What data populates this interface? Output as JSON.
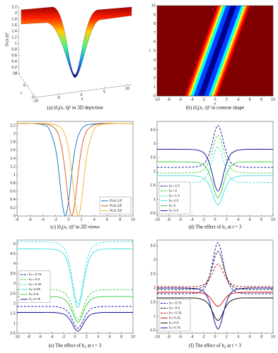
{
  "chart_data": [
    {
      "type": "surface",
      "caption": "(a) |ϑ₄(x, t)|² in 3D depiction",
      "xlabel": "x",
      "ylabel": "t",
      "zlabel": "|ϑ₄(x,t)|²",
      "xlim": [
        -10,
        10
      ],
      "xticks": [
        -10,
        -5,
        0,
        5,
        10
      ],
      "ylim": [
        0,
        10
      ],
      "yticks": [
        0,
        5,
        10
      ],
      "zlim": [
        0,
        2.25
      ],
      "zticks": [
        0,
        0.2,
        0.4,
        0.6,
        0.8,
        1,
        1.2,
        1.4,
        1.6,
        1.8,
        2,
        2.2
      ]
    },
    {
      "type": "contour",
      "caption": "(b) |ϑ₄(x, t)|² in contour shape",
      "xlabel": "x",
      "ylabel": "t",
      "xlim": [
        -10,
        10
      ],
      "xticks": [
        -10,
        -8,
        -6,
        -4,
        -2,
        0,
        2,
        4,
        6,
        8,
        10
      ],
      "ylim": [
        0,
        10
      ],
      "yticks": [
        0,
        1,
        2,
        3,
        4,
        5,
        6,
        7,
        8,
        9,
        10
      ]
    },
    {
      "type": "line",
      "caption": "(c) |ϑ₄(x, t)|² in 2D views",
      "legend": "lower right",
      "x": [
        -8,
        -6,
        -4,
        -3,
        -2,
        -1.5,
        -1,
        -0.5,
        0,
        0.5,
        1,
        1.5,
        2,
        2.5,
        3,
        4,
        5,
        6,
        8,
        10
      ],
      "xlim": [
        -8,
        10
      ],
      "xticks": [
        -8,
        -6,
        -4,
        -2,
        0,
        2,
        4,
        6,
        8,
        10
      ],
      "ylim": [
        0,
        2.3
      ],
      "yticks": [
        0,
        0.2,
        0.4,
        0.6,
        0.8,
        1,
        1.2,
        1.4,
        1.6,
        1.8,
        2,
        2.2
      ],
      "series": [
        {
          "name": "|ϑ₄(x,1)|²",
          "color": "#0072bd",
          "dashed": false,
          "values": [
            2.25,
            2.25,
            2.22,
            2.11,
            1.62,
            1.05,
            0.35,
            0,
            0.35,
            1.05,
            1.62,
            1.95,
            2.11,
            2.19,
            2.22,
            2.24,
            2.25,
            2.25,
            2.25,
            2.25
          ]
        },
        {
          "name": "|ϑ₄(x,2)|²",
          "color": "#d95319",
          "dashed": false,
          "values": [
            2.25,
            2.25,
            2.24,
            2.22,
            2.11,
            1.95,
            1.62,
            1.05,
            0.35,
            0,
            0.35,
            1.05,
            1.62,
            1.95,
            2.11,
            2.22,
            2.24,
            2.25,
            2.25,
            2.25
          ]
        },
        {
          "name": "|ϑ₄(x,3)|²",
          "color": "#edb120",
          "dashed": false,
          "values": [
            2.25,
            2.25,
            2.25,
            2.24,
            2.22,
            2.19,
            2.11,
            1.95,
            1.62,
            1.05,
            0.35,
            0,
            0.35,
            1.05,
            1.62,
            2.11,
            2.22,
            2.24,
            2.25,
            2.25
          ]
        }
      ]
    },
    {
      "type": "line",
      "caption": "(d) The effect of b₂ at t = 3",
      "legend": "lower left",
      "x": [
        -10,
        -6,
        -4,
        -3,
        -2,
        -1.5,
        -1,
        -0.5,
        0,
        0.5,
        1,
        1.5,
        2,
        2.5,
        3,
        4,
        5,
        6,
        10
      ],
      "xlim": [
        -10,
        10
      ],
      "xticks": [
        -10,
        -8,
        -6,
        -4,
        -2,
        0,
        2,
        4,
        6,
        8,
        10
      ],
      "ylim": [
        0.4,
        3.8
      ],
      "yticks": [
        0.5,
        1,
        1.5,
        2,
        2.5,
        3,
        3.5
      ],
      "series": [
        {
          "name": "b₂=-2.5",
          "color": "#000099",
          "dashed": true,
          "values": [
            2.15,
            2.15,
            2.16,
            2.18,
            2.27,
            2.4,
            2.65,
            3.02,
            3.45,
            3.65,
            3.45,
            3.02,
            2.65,
            2.4,
            2.27,
            2.18,
            2.16,
            2.15,
            2.15
          ]
        },
        {
          "name": "b₂=-2",
          "color": "#33cc33",
          "dashed": true,
          "values": [
            1.95,
            1.95,
            1.96,
            1.97,
            2.06,
            2.18,
            2.4,
            2.73,
            3.12,
            3.3,
            3.12,
            2.73,
            2.4,
            2.18,
            2.06,
            1.97,
            1.96,
            1.95,
            1.95
          ]
        },
        {
          "name": "b₂=-1.5",
          "color": "#33dede",
          "dashed": true,
          "values": [
            1.6,
            1.6,
            1.61,
            1.62,
            1.71,
            1.82,
            2.03,
            2.35,
            2.72,
            2.9,
            2.72,
            2.35,
            2.03,
            1.82,
            1.71,
            1.62,
            1.61,
            1.6,
            1.6
          ]
        },
        {
          "name": "b₂=1.5",
          "color": "#33dede",
          "dashed": false,
          "values": [
            1.85,
            1.85,
            1.85,
            1.83,
            1.76,
            1.67,
            1.5,
            1.24,
            0.94,
            0.8,
            0.94,
            1.24,
            1.5,
            1.67,
            1.76,
            1.83,
            1.85,
            1.85,
            1.85
          ]
        },
        {
          "name": "b₂=2",
          "color": "#33cc33",
          "dashed": false,
          "values": [
            2.35,
            2.35,
            2.34,
            2.33,
            2.24,
            2.13,
            1.92,
            1.6,
            1.23,
            1.05,
            1.23,
            1.6,
            1.92,
            2.13,
            2.24,
            2.33,
            2.34,
            2.35,
            2.35
          ]
        },
        {
          "name": "b₂=2.5",
          "color": "#000099",
          "dashed": false,
          "values": [
            2.8,
            2.8,
            2.79,
            2.77,
            2.68,
            2.55,
            2.31,
            1.93,
            1.5,
            1.3,
            1.5,
            1.93,
            2.31,
            2.55,
            2.68,
            2.77,
            2.79,
            2.8,
            2.8
          ]
        }
      ]
    },
    {
      "type": "line",
      "caption": "(e) The effect of b₃ at t = 3",
      "legend": "center left",
      "x": [
        -10,
        -6,
        -4,
        -3,
        -2,
        -1.5,
        -1,
        -0.5,
        0,
        0.5,
        1,
        1.5,
        2,
        2.5,
        3,
        4,
        5,
        6,
        10
      ],
      "xlim": [
        -10,
        10
      ],
      "xticks": [
        -10,
        -8,
        -6,
        -4,
        -2,
        0,
        2,
        4,
        6,
        8,
        10
      ],
      "ylim": [
        0.5,
        5.2
      ],
      "yticks": [
        0.5,
        1,
        1.5,
        2,
        2.5,
        3,
        3.5,
        4,
        4.5,
        5
      ],
      "series": [
        {
          "name": "b₃=-0.75",
          "color": "#000099",
          "dashed": true,
          "values": [
            1.85,
            1.85,
            1.85,
            1.83,
            1.76,
            1.66,
            1.49,
            1.21,
            0.9,
            0.75,
            0.9,
            1.21,
            1.49,
            1.66,
            1.76,
            1.83,
            1.85,
            1.85,
            1.85
          ]
        },
        {
          "name": "b₃=-0.5",
          "color": "#33cc33",
          "dashed": true,
          "values": [
            2.7,
            2.7,
            2.69,
            2.67,
            2.58,
            2.45,
            2.21,
            1.83,
            1.4,
            1.2,
            1.4,
            1.83,
            2.21,
            2.45,
            2.58,
            2.67,
            2.69,
            2.7,
            2.7
          ]
        },
        {
          "name": "b₃=-0.25",
          "color": "#33dede",
          "dashed": true,
          "values": [
            5.1,
            5.1,
            5.09,
            5.04,
            4.84,
            4.58,
            4.08,
            3.3,
            2.42,
            2,
            2.42,
            3.3,
            4.08,
            4.58,
            4.84,
            5.04,
            5.09,
            5.1,
            5.1
          ]
        },
        {
          "name": "b₃=0.25",
          "color": "#33dede",
          "dashed": false,
          "values": [
            4.75,
            4.75,
            4.74,
            4.7,
            4.51,
            4.25,
            3.78,
            3.04,
            2.2,
            1.8,
            2.2,
            3.04,
            3.78,
            4.25,
            4.51,
            4.7,
            4.74,
            4.75,
            4.75
          ]
        },
        {
          "name": "b₃=0.5",
          "color": "#33cc33",
          "dashed": false,
          "values": [
            2.35,
            2.35,
            2.34,
            2.33,
            2.24,
            2.13,
            1.92,
            1.6,
            1.23,
            1.05,
            1.23,
            1.6,
            1.92,
            2.13,
            2.24,
            2.33,
            2.34,
            2.35,
            2.35
          ]
        },
        {
          "name": "b₃=0.75",
          "color": "#000099",
          "dashed": false,
          "values": [
            1.55,
            1.55,
            1.55,
            1.53,
            1.47,
            1.39,
            1.24,
            1,
            0.73,
            0.6,
            0.73,
            1,
            1.24,
            1.39,
            1.47,
            1.53,
            1.55,
            1.55,
            1.55
          ]
        }
      ]
    },
    {
      "type": "line",
      "caption": "(f) The effect of b₄ at t = 3",
      "legend": "lower left",
      "x": [
        -10,
        -6,
        -4,
        -3,
        -2,
        -1.5,
        -1,
        -0.5,
        0,
        0.5,
        1,
        1.5,
        2,
        2.5,
        3,
        4,
        5,
        6,
        10
      ],
      "xlim": [
        -10,
        10
      ],
      "xticks": [
        -10,
        -8,
        -6,
        -4,
        -2,
        0,
        2,
        4,
        6,
        8,
        10
      ],
      "ylim": [
        0.4,
        3.7
      ],
      "yticks": [
        0.5,
        1,
        1.5,
        2,
        2.5,
        3,
        3.5
      ],
      "series": [
        {
          "name": "b₄=-0.75",
          "color": "#000099",
          "dashed": true,
          "values": [
            1.8,
            1.8,
            1.81,
            1.83,
            1.95,
            2.1,
            2.39,
            2.84,
            3.36,
            3.6,
            3.36,
            2.84,
            2.39,
            2.1,
            1.95,
            1.83,
            1.81,
            1.8,
            1.8
          ]
        },
        {
          "name": "b₄=-0.5",
          "color": "#000000",
          "dashed": true,
          "values": [
            1.95,
            1.95,
            1.96,
            1.97,
            2.06,
            2.18,
            2.4,
            2.73,
            3.12,
            3.3,
            3.12,
            2.73,
            2.4,
            2.18,
            2.06,
            1.97,
            1.96,
            1.95,
            1.95
          ]
        },
        {
          "name": "b₄=-0.25",
          "color": "#cc0000",
          "dashed": true,
          "values": [
            2.05,
            2.05,
            2.05,
            2.06,
            2.12,
            2.19,
            2.31,
            2.51,
            2.74,
            2.85,
            2.74,
            2.51,
            2.31,
            2.19,
            2.12,
            2.06,
            2.05,
            2.05,
            2.05
          ]
        },
        {
          "name": "b₄=0.25",
          "color": "#cc0000",
          "dashed": false,
          "values": [
            1.85,
            1.85,
            1.85,
            1.84,
            1.81,
            1.77,
            1.69,
            1.56,
            1.42,
            1.35,
            1.42,
            1.56,
            1.69,
            1.77,
            1.81,
            1.84,
            1.85,
            1.85,
            1.85
          ]
        },
        {
          "name": "b₄=0.5",
          "color": "#000000",
          "dashed": false,
          "values": [
            1.65,
            1.65,
            1.65,
            1.64,
            1.58,
            1.51,
            1.39,
            1.19,
            0.96,
            0.85,
            0.96,
            1.19,
            1.39,
            1.51,
            1.58,
            1.64,
            1.65,
            1.65,
            1.65
          ]
        },
        {
          "name": "b₄=0.75",
          "color": "#000099",
          "dashed": false,
          "values": [
            2,
            2,
            1.99,
            1.97,
            1.88,
            1.75,
            1.52,
            1.16,
            0.75,
            0.55,
            0.75,
            1.16,
            1.52,
            1.75,
            1.88,
            1.97,
            1.99,
            2,
            2
          ]
        }
      ]
    }
  ]
}
